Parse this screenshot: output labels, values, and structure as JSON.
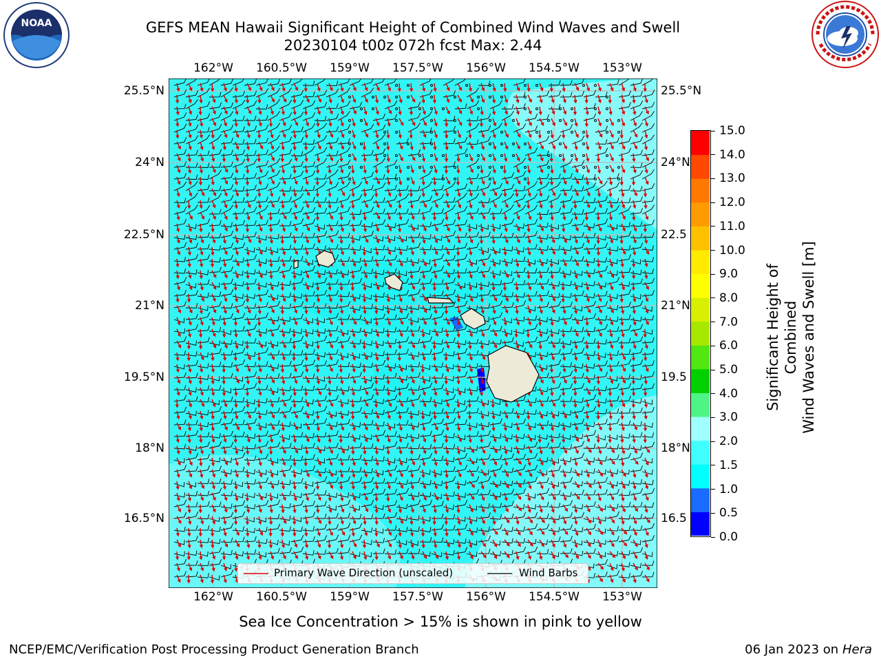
{
  "title": {
    "line1": "GEFS MEAN Hawaii Significant Height of Combined Wind Waves and Swell",
    "line2": "20230104 t00z 072h fcst   Max: 2.44"
  },
  "logos": {
    "left_text": "NOAA",
    "left_ring_text": "NATIONAL OCEANIC AND ATMOSPHERIC ADMINISTRATION · U.S. DEPARTMENT OF COMMERCE",
    "right_ring_text": "NATIONAL WEATHER SERVICE"
  },
  "axes": {
    "lon_labels": [
      "162°W",
      "160.5°W",
      "159°W",
      "157.5°W",
      "156°W",
      "154.5°W",
      "153°W"
    ],
    "lat_labels": [
      "25.5°N",
      "24°N",
      "22.5°N",
      "21°N",
      "19.5°N",
      "18°N",
      "16.5°N"
    ],
    "lat_labels_right": [
      "25.5°N",
      "24°N",
      "22.5",
      "21°N",
      "19.5",
      "18°N",
      "16.5"
    ]
  },
  "legend": {
    "wave_label": "Primary Wave Direction (unscaled)",
    "barb_label": "Wind Barbs"
  },
  "colorbar": {
    "label_line1": "Significant Height of Combined",
    "label_line2": "Wind Waves and Swell [m]",
    "ticks": [
      "0.0",
      "0.5",
      "1.0",
      "1.5",
      "2.0",
      "3.0",
      "4.0",
      "5.0",
      "6.0",
      "7.0",
      "8.0",
      "9.0",
      "10.0",
      "11.0",
      "12.0",
      "13.0",
      "14.0",
      "15.0"
    ],
    "colors": [
      "#0000ff",
      "#1a6bff",
      "#00ffff",
      "#40ffff",
      "#a0ffff",
      "#4ef586",
      "#00d000",
      "#50e810",
      "#a8e800",
      "#d8f000",
      "#ffff00",
      "#ffea00",
      "#ffc000",
      "#ff9a00",
      "#ff7800",
      "#ff4800",
      "#ff0000"
    ]
  },
  "note": "Sea Ice Concentration > 15% is shown in pink to yellow",
  "footer": {
    "left": "NCEP/EMC/Verification Post Processing Product Generation Branch",
    "right_date": "06 Jan 2023 on ",
    "right_host": "Hera"
  }
}
